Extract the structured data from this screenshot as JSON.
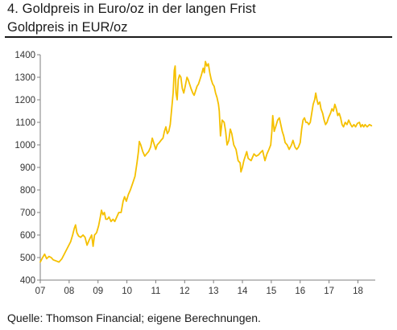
{
  "header": {
    "title": "4. Goldpreis in Euro/oz in der langen Frist",
    "subtitle": "Goldpreis in EUR/oz"
  },
  "footer": {
    "source": "Quelle: Thomson Financial; eigene Berechnungen."
  },
  "colors": {
    "line": "#f5c000",
    "axis": "#7f7f7f",
    "text": "#1a1a1a"
  },
  "chart_data": {
    "type": "line",
    "title": "Goldpreis in EUR/oz",
    "xlabel": "",
    "ylabel": "",
    "x_ticks": [
      "07",
      "08",
      "09",
      "10",
      "11",
      "12",
      "13",
      "14",
      "15",
      "16",
      "17",
      "18"
    ],
    "y_ticks": [
      400,
      500,
      600,
      700,
      800,
      900,
      1000,
      1100,
      1200,
      1300,
      1400
    ],
    "xlim": [
      2007.0,
      2018.6
    ],
    "ylim": [
      400,
      1400
    ],
    "grid": false,
    "legend": "none",
    "series": [
      {
        "name": "",
        "points": [
          [
            2007.0,
            480
          ],
          [
            2007.08,
            500
          ],
          [
            2007.15,
            515
          ],
          [
            2007.22,
            495
          ],
          [
            2007.3,
            505
          ],
          [
            2007.38,
            500
          ],
          [
            2007.45,
            490
          ],
          [
            2007.55,
            485
          ],
          [
            2007.65,
            480
          ],
          [
            2007.75,
            495
          ],
          [
            2007.85,
            520
          ],
          [
            2007.95,
            545
          ],
          [
            2008.05,
            570
          ],
          [
            2008.12,
            600
          ],
          [
            2008.18,
            630
          ],
          [
            2008.22,
            645
          ],
          [
            2008.27,
            610
          ],
          [
            2008.33,
            595
          ],
          [
            2008.4,
            590
          ],
          [
            2008.48,
            600
          ],
          [
            2008.55,
            590
          ],
          [
            2008.62,
            555
          ],
          [
            2008.7,
            580
          ],
          [
            2008.78,
            600
          ],
          [
            2008.83,
            550
          ],
          [
            2008.88,
            600
          ],
          [
            2008.95,
            610
          ],
          [
            2009.02,
            640
          ],
          [
            2009.08,
            680
          ],
          [
            2009.12,
            710
          ],
          [
            2009.17,
            690
          ],
          [
            2009.22,
            700
          ],
          [
            2009.27,
            670
          ],
          [
            2009.32,
            670
          ],
          [
            2009.38,
            680
          ],
          [
            2009.45,
            660
          ],
          [
            2009.52,
            670
          ],
          [
            2009.58,
            660
          ],
          [
            2009.65,
            680
          ],
          [
            2009.72,
            700
          ],
          [
            2009.8,
            700
          ],
          [
            2009.87,
            750
          ],
          [
            2009.92,
            770
          ],
          [
            2009.98,
            750
          ],
          [
            2010.05,
            780
          ],
          [
            2010.12,
            800
          ],
          [
            2010.2,
            830
          ],
          [
            2010.28,
            860
          ],
          [
            2010.35,
            920
          ],
          [
            2010.4,
            970
          ],
          [
            2010.43,
            1015
          ],
          [
            2010.48,
            1000
          ],
          [
            2010.55,
            970
          ],
          [
            2010.62,
            950
          ],
          [
            2010.68,
            960
          ],
          [
            2010.75,
            970
          ],
          [
            2010.82,
            990
          ],
          [
            2010.88,
            1030
          ],
          [
            2010.95,
            1000
          ],
          [
            2011.0,
            980
          ],
          [
            2011.05,
            1000
          ],
          [
            2011.12,
            1010
          ],
          [
            2011.18,
            1020
          ],
          [
            2011.25,
            1030
          ],
          [
            2011.3,
            1060
          ],
          [
            2011.35,
            1080
          ],
          [
            2011.4,
            1050
          ],
          [
            2011.45,
            1060
          ],
          [
            2011.5,
            1090
          ],
          [
            2011.55,
            1160
          ],
          [
            2011.6,
            1230
          ],
          [
            2011.64,
            1330
          ],
          [
            2011.67,
            1350
          ],
          [
            2011.7,
            1230
          ],
          [
            2011.74,
            1200
          ],
          [
            2011.78,
            1290
          ],
          [
            2011.82,
            1310
          ],
          [
            2011.87,
            1300
          ],
          [
            2011.92,
            1250
          ],
          [
            2011.97,
            1230
          ],
          [
            2012.02,
            1260
          ],
          [
            2012.08,
            1300
          ],
          [
            2012.12,
            1290
          ],
          [
            2012.17,
            1270
          ],
          [
            2012.22,
            1250
          ],
          [
            2012.28,
            1230
          ],
          [
            2012.33,
            1220
          ],
          [
            2012.38,
            1240
          ],
          [
            2012.43,
            1260
          ],
          [
            2012.48,
            1270
          ],
          [
            2012.53,
            1290
          ],
          [
            2012.58,
            1310
          ],
          [
            2012.64,
            1340
          ],
          [
            2012.68,
            1320
          ],
          [
            2012.72,
            1370
          ],
          [
            2012.77,
            1350
          ],
          [
            2012.82,
            1360
          ],
          [
            2012.87,
            1320
          ],
          [
            2012.92,
            1290
          ],
          [
            2012.97,
            1270
          ],
          [
            2013.02,
            1260
          ],
          [
            2013.07,
            1230
          ],
          [
            2013.12,
            1210
          ],
          [
            2013.17,
            1180
          ],
          [
            2013.2,
            1150
          ],
          [
            2013.24,
            1040
          ],
          [
            2013.3,
            1110
          ],
          [
            2013.37,
            1100
          ],
          [
            2013.42,
            1060
          ],
          [
            2013.47,
            1000
          ],
          [
            2013.53,
            1020
          ],
          [
            2013.58,
            1070
          ],
          [
            2013.63,
            1050
          ],
          [
            2013.7,
            1000
          ],
          [
            2013.78,
            980
          ],
          [
            2013.85,
            930
          ],
          [
            2013.92,
            920
          ],
          [
            2013.95,
            880
          ],
          [
            2014.0,
            900
          ],
          [
            2014.05,
            930
          ],
          [
            2014.1,
            950
          ],
          [
            2014.15,
            970
          ],
          [
            2014.2,
            940
          ],
          [
            2014.25,
            935
          ],
          [
            2014.3,
            930
          ],
          [
            2014.35,
            945
          ],
          [
            2014.4,
            960
          ],
          [
            2014.48,
            950
          ],
          [
            2014.55,
            955
          ],
          [
            2014.62,
            965
          ],
          [
            2014.7,
            975
          ],
          [
            2014.78,
            930
          ],
          [
            2014.85,
            960
          ],
          [
            2014.92,
            980
          ],
          [
            2014.98,
            1000
          ],
          [
            2015.02,
            1060
          ],
          [
            2015.05,
            1130
          ],
          [
            2015.1,
            1060
          ],
          [
            2015.15,
            1080
          ],
          [
            2015.22,
            1110
          ],
          [
            2015.28,
            1120
          ],
          [
            2015.33,
            1090
          ],
          [
            2015.38,
            1060
          ],
          [
            2015.43,
            1040
          ],
          [
            2015.48,
            1010
          ],
          [
            2015.55,
            1000
          ],
          [
            2015.62,
            980
          ],
          [
            2015.7,
            1000
          ],
          [
            2015.75,
            1020
          ],
          [
            2015.82,
            990
          ],
          [
            2015.88,
            980
          ],
          [
            2015.94,
            990
          ],
          [
            2016.0,
            1010
          ],
          [
            2016.05,
            1070
          ],
          [
            2016.1,
            1110
          ],
          [
            2016.15,
            1120
          ],
          [
            2016.2,
            1100
          ],
          [
            2016.25,
            1100
          ],
          [
            2016.3,
            1090
          ],
          [
            2016.35,
            1100
          ],
          [
            2016.4,
            1140
          ],
          [
            2016.45,
            1180
          ],
          [
            2016.5,
            1200
          ],
          [
            2016.54,
            1230
          ],
          [
            2016.58,
            1200
          ],
          [
            2016.62,
            1180
          ],
          [
            2016.68,
            1190
          ],
          [
            2016.72,
            1160
          ],
          [
            2016.78,
            1140
          ],
          [
            2016.83,
            1110
          ],
          [
            2016.88,
            1090
          ],
          [
            2016.93,
            1100
          ],
          [
            2016.98,
            1120
          ],
          [
            2017.05,
            1140
          ],
          [
            2017.1,
            1160
          ],
          [
            2017.15,
            1150
          ],
          [
            2017.2,
            1180
          ],
          [
            2017.25,
            1160
          ],
          [
            2017.3,
            1130
          ],
          [
            2017.35,
            1140
          ],
          [
            2017.4,
            1120
          ],
          [
            2017.45,
            1090
          ],
          [
            2017.5,
            1080
          ],
          [
            2017.56,
            1100
          ],
          [
            2017.62,
            1090
          ],
          [
            2017.68,
            1110
          ],
          [
            2017.75,
            1090
          ],
          [
            2017.8,
            1080
          ],
          [
            2017.86,
            1090
          ],
          [
            2017.92,
            1080
          ],
          [
            2017.98,
            1095
          ],
          [
            2018.05,
            1100
          ],
          [
            2018.1,
            1080
          ],
          [
            2018.15,
            1090
          ],
          [
            2018.2,
            1080
          ],
          [
            2018.25,
            1090
          ],
          [
            2018.32,
            1080
          ],
          [
            2018.4,
            1090
          ],
          [
            2018.47,
            1085
          ]
        ]
      }
    ]
  }
}
